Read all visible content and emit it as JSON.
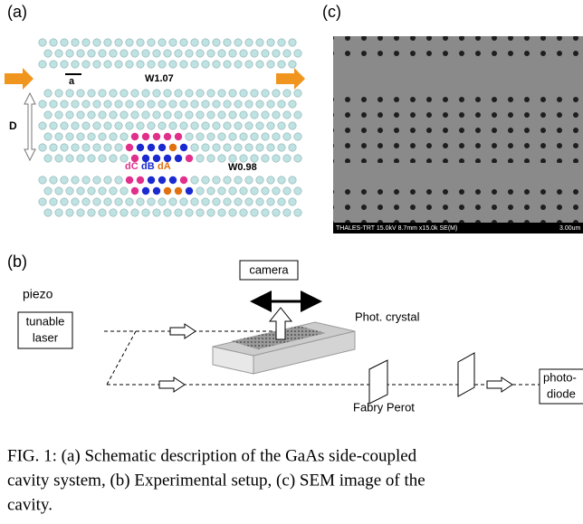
{
  "panel_a": {
    "label": "(a)",
    "lattice_constant": "a",
    "waveguide_top": "W1.07",
    "distance": "D",
    "holes": [
      "dC",
      "dB",
      "dA"
    ],
    "waveguide_bottom": "W0.98"
  },
  "panel_c": {
    "label": "(c)",
    "sem_info": "THALES-TRT 15.0kV 8.7mm x15.0k SE(M)",
    "scale": "3.00um"
  },
  "panel_b": {
    "label": "(b)",
    "camera": "camera",
    "piezo": "piezo",
    "laser": [
      "tunable",
      "laser"
    ],
    "crystal": "Phot. crystal",
    "fabry_perot": "Fabry Perot",
    "detector": [
      "photo-",
      "diode"
    ]
  },
  "caption": [
    "FIG. 1:  (a) Schematic description of the GaAs side-coupled",
    "cavity system, (b) Experimental setup, (c) SEM image of the",
    "cavity."
  ]
}
